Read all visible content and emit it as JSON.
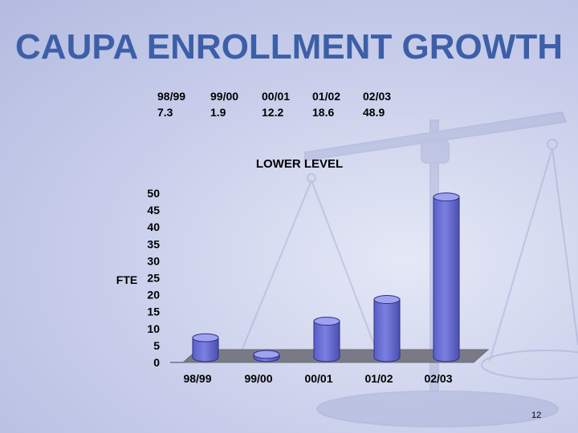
{
  "slide": {
    "title": "CAUPA ENROLLMENT GROWTH",
    "page_number": "12",
    "table": {
      "years": [
        "98/99",
        "99/00",
        "00/01",
        "01/02",
        "02/03"
      ],
      "values": [
        "7.3",
        "1.9",
        "12.2",
        "18.6",
        "48.9"
      ]
    }
  },
  "chart_data": {
    "type": "bar",
    "title": "LOWER LEVEL",
    "ylabel": "FTE",
    "xlabel": "",
    "categories": [
      "98/99",
      "99/00",
      "00/01",
      "01/02",
      "02/03"
    ],
    "values": [
      7.3,
      1.9,
      12.2,
      18.6,
      48.9
    ],
    "ylim": [
      0,
      50
    ],
    "yticks": [
      "0",
      "5",
      "10",
      "15",
      "20",
      "25",
      "30",
      "35",
      "40",
      "45",
      "50"
    ],
    "bar_color": "#7b80e0",
    "floor_color": "#7a7a86"
  }
}
